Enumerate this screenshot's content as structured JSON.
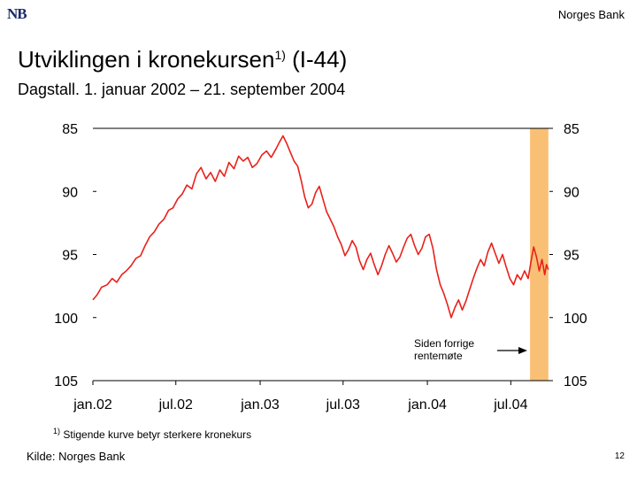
{
  "header": {
    "logo_text": "NB",
    "brand": "Norges Bank"
  },
  "title": {
    "main": "Utviklingen i kronekursen",
    "superscript": "1)",
    "suffix": " (I-44)",
    "subtitle": "Dagstall. 1. januar 2002 – 21. september 2004"
  },
  "footer": {
    "footnote_mark": "1)",
    "footnote_text": " Stigende kurve betyr sterkere kronekurs",
    "source": "Kilde: Norges Bank",
    "page_number": "12"
  },
  "chart_data": {
    "type": "line",
    "title": "",
    "xlabel": "",
    "ylabel": "",
    "y_axis_inverted": true,
    "ylim": [
      85,
      105
    ],
    "xlim": [
      "2002-01-01",
      "2004-10-01"
    ],
    "y_ticks": [
      85,
      90,
      95,
      100,
      105
    ],
    "y_tick_labels": [
      "85",
      "90",
      "95",
      "100",
      "105"
    ],
    "x_ticks": [
      "2002-01-01",
      "2002-07-01",
      "2003-01-01",
      "2003-07-01",
      "2004-01-01",
      "2004-07-01"
    ],
    "x_tick_labels": [
      "jan.02",
      "jul.02",
      "jan.03",
      "jul.03",
      "jan.04",
      "jul.04"
    ],
    "grid": false,
    "line_color": "#e8211b",
    "shaded_region": {
      "start": "2004-08-12",
      "end": "2004-09-21",
      "color": "#f9bf74",
      "annotation": "Siden forrige rentemøte"
    },
    "series": [
      {
        "values": [
          [
            "2002-01-01",
            98.6
          ],
          [
            "2002-01-10",
            98.2
          ],
          [
            "2002-01-20",
            97.6
          ],
          [
            "2002-02-01",
            97.4
          ],
          [
            "2002-02-12",
            96.9
          ],
          [
            "2002-02-22",
            97.2
          ],
          [
            "2002-03-05",
            96.6
          ],
          [
            "2002-03-15",
            96.3
          ],
          [
            "2002-03-25",
            95.9
          ],
          [
            "2002-04-05",
            95.3
          ],
          [
            "2002-04-15",
            95.1
          ],
          [
            "2002-04-25",
            94.3
          ],
          [
            "2002-05-05",
            93.6
          ],
          [
            "2002-05-15",
            93.2
          ],
          [
            "2002-05-25",
            92.6
          ],
          [
            "2002-06-05",
            92.2
          ],
          [
            "2002-06-15",
            91.5
          ],
          [
            "2002-06-25",
            91.3
          ],
          [
            "2002-07-05",
            90.6
          ],
          [
            "2002-07-15",
            90.2
          ],
          [
            "2002-07-25",
            89.5
          ],
          [
            "2002-08-05",
            89.8
          ],
          [
            "2002-08-15",
            88.6
          ],
          [
            "2002-08-25",
            88.1
          ],
          [
            "2002-09-05",
            89.0
          ],
          [
            "2002-09-15",
            88.5
          ],
          [
            "2002-09-25",
            89.2
          ],
          [
            "2002-10-05",
            88.3
          ],
          [
            "2002-10-15",
            88.8
          ],
          [
            "2002-10-25",
            87.7
          ],
          [
            "2002-11-05",
            88.2
          ],
          [
            "2002-11-15",
            87.2
          ],
          [
            "2002-11-25",
            87.6
          ],
          [
            "2002-12-05",
            87.3
          ],
          [
            "2002-12-15",
            88.1
          ],
          [
            "2002-12-25",
            87.8
          ],
          [
            "2003-01-05",
            87.1
          ],
          [
            "2003-01-15",
            86.8
          ],
          [
            "2003-01-25",
            87.3
          ],
          [
            "2003-02-05",
            86.6
          ],
          [
            "2003-02-12",
            86.1
          ],
          [
            "2003-02-20",
            85.6
          ],
          [
            "2003-02-28",
            86.2
          ],
          [
            "2003-03-08",
            86.9
          ],
          [
            "2003-03-16",
            87.6
          ],
          [
            "2003-03-24",
            88.0
          ],
          [
            "2003-04-01",
            89.2
          ],
          [
            "2003-04-08",
            90.4
          ],
          [
            "2003-04-16",
            91.3
          ],
          [
            "2003-04-24",
            91.0
          ],
          [
            "2003-05-02",
            90.1
          ],
          [
            "2003-05-10",
            89.6
          ],
          [
            "2003-05-18",
            90.6
          ],
          [
            "2003-05-26",
            91.6
          ],
          [
            "2003-06-03",
            92.2
          ],
          [
            "2003-06-11",
            92.8
          ],
          [
            "2003-06-19",
            93.6
          ],
          [
            "2003-06-27",
            94.2
          ],
          [
            "2003-07-05",
            95.1
          ],
          [
            "2003-07-13",
            94.6
          ],
          [
            "2003-07-21",
            93.9
          ],
          [
            "2003-07-29",
            94.4
          ],
          [
            "2003-08-06",
            95.5
          ],
          [
            "2003-08-14",
            96.2
          ],
          [
            "2003-08-22",
            95.4
          ],
          [
            "2003-08-30",
            94.9
          ],
          [
            "2003-09-07",
            95.8
          ],
          [
            "2003-09-15",
            96.6
          ],
          [
            "2003-09-23",
            95.9
          ],
          [
            "2003-10-01",
            95.0
          ],
          [
            "2003-10-09",
            94.3
          ],
          [
            "2003-10-17",
            94.9
          ],
          [
            "2003-10-25",
            95.6
          ],
          [
            "2003-11-02",
            95.2
          ],
          [
            "2003-11-10",
            94.4
          ],
          [
            "2003-11-18",
            93.7
          ],
          [
            "2003-11-26",
            93.4
          ],
          [
            "2003-12-04",
            94.3
          ],
          [
            "2003-12-12",
            95.0
          ],
          [
            "2003-12-20",
            94.5
          ],
          [
            "2003-12-28",
            93.6
          ],
          [
            "2004-01-05",
            93.4
          ],
          [
            "2004-01-13",
            94.5
          ],
          [
            "2004-01-21",
            96.2
          ],
          [
            "2004-01-29",
            97.4
          ],
          [
            "2004-02-06",
            98.1
          ],
          [
            "2004-02-14",
            99.0
          ],
          [
            "2004-02-22",
            100.0
          ],
          [
            "2004-03-01",
            99.2
          ],
          [
            "2004-03-09",
            98.6
          ],
          [
            "2004-03-17",
            99.4
          ],
          [
            "2004-03-25",
            98.7
          ],
          [
            "2004-04-02",
            97.8
          ],
          [
            "2004-04-10",
            96.9
          ],
          [
            "2004-04-18",
            96.1
          ],
          [
            "2004-04-26",
            95.4
          ],
          [
            "2004-05-04",
            95.9
          ],
          [
            "2004-05-12",
            94.8
          ],
          [
            "2004-05-20",
            94.1
          ],
          [
            "2004-05-28",
            94.9
          ],
          [
            "2004-06-05",
            95.7
          ],
          [
            "2004-06-13",
            95.0
          ],
          [
            "2004-06-21",
            96.0
          ],
          [
            "2004-06-29",
            96.9
          ],
          [
            "2004-07-07",
            97.4
          ],
          [
            "2004-07-15",
            96.6
          ],
          [
            "2004-07-23",
            97.0
          ],
          [
            "2004-07-31",
            96.3
          ],
          [
            "2004-08-08",
            96.9
          ],
          [
            "2004-08-14",
            95.6
          ],
          [
            "2004-08-20",
            94.4
          ],
          [
            "2004-08-26",
            95.2
          ],
          [
            "2004-09-01",
            96.3
          ],
          [
            "2004-09-07",
            95.4
          ],
          [
            "2004-09-13",
            96.6
          ],
          [
            "2004-09-17",
            95.8
          ],
          [
            "2004-09-21",
            96.2
          ]
        ]
      }
    ]
  }
}
